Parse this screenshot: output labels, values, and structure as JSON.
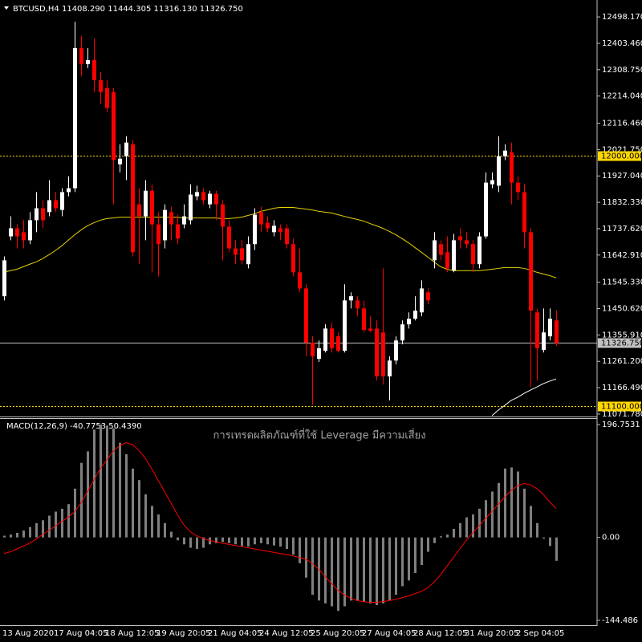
{
  "chart_data": [
    {
      "type": "candlestick",
      "title": "BTCUSD,H4  11408.290 11444.305 11316.130 11326.750",
      "watermark": "การเทรดผลิตภัณฑ์ที่ใช้ Leverage มีความเสี่ยง",
      "up_color": "#ffffff",
      "down_color": "#ff0000",
      "categories": [
        "13 Aug 2020",
        null,
        null,
        null,
        null,
        null,
        null,
        null,
        "17 Aug 04:05",
        null,
        null,
        null,
        null,
        null,
        null,
        null,
        "18 Aug 12:05",
        null,
        null,
        null,
        null,
        null,
        null,
        null,
        "19 Aug 20:05",
        null,
        null,
        null,
        null,
        null,
        null,
        null,
        "21 Aug 04:05",
        null,
        null,
        null,
        null,
        null,
        null,
        null,
        "24 Aug 12:05",
        null,
        null,
        null,
        null,
        null,
        null,
        null,
        "25 Aug 20:05",
        null,
        null,
        null,
        null,
        null,
        null,
        null,
        "27 Aug 04:05",
        null,
        null,
        null,
        null,
        null,
        null,
        null,
        "28 Aug 12:05",
        null,
        null,
        null,
        null,
        null,
        null,
        null,
        "31 Aug 20:05",
        null,
        null,
        null,
        null,
        null,
        null,
        null,
        "2 Sep 04:05",
        null,
        null,
        null,
        null,
        null,
        null
      ],
      "open": [
        11495,
        11710,
        11739,
        11725,
        11696,
        11768,
        11811,
        11797,
        11840,
        11805,
        11869,
        11883,
        12386,
        12329,
        12343,
        12271,
        12243,
        12228,
        11969,
        11998,
        12041,
        11825,
        11782,
        11874,
        11753,
        11696,
        11797,
        11753,
        11753,
        11768,
        11854,
        11869,
        11825,
        11863,
        11825,
        11745,
        11667,
        11667,
        11610,
        11682,
        11797,
        11759,
        11725,
        11739,
        11739,
        11682,
        11581,
        11523,
        11328,
        11270,
        11299,
        11379,
        11351,
        11299,
        11480,
        11480,
        11451,
        11379,
        11379,
        11365,
        11207,
        11264,
        11336,
        11394,
        11414,
        11437,
        11509,
        11624,
        11682,
        11653,
        11587,
        11710,
        11696,
        11682,
        11610,
        11710,
        11897,
        11892,
        11998,
        12012,
        11903,
        11869,
        11725,
        11437,
        11302,
        11351,
        11408.29
      ],
      "high": [
        11638,
        11782,
        11753,
        11768,
        11797,
        11869,
        11840,
        11912,
        11869,
        11883,
        11926,
        12481,
        12430,
        12386,
        12421,
        12300,
        12271,
        12243,
        12041,
        12070,
        12056,
        11883,
        11912,
        11897,
        11797,
        11825,
        11817,
        11788,
        11825,
        11897,
        11892,
        11883,
        11874,
        11874,
        11840,
        11768,
        11696,
        11696,
        11710,
        11811,
        11817,
        11782,
        11768,
        11753,
        11753,
        11702,
        11667,
        11538,
        11351,
        11336,
        11394,
        11400,
        11365,
        11538,
        11509,
        11495,
        11480,
        11423,
        11408,
        11595,
        11279,
        11351,
        11408,
        11437,
        11495,
        11552,
        11523,
        11725,
        11696,
        11710,
        11719,
        11739,
        11725,
        11696,
        11725,
        11940,
        11940,
        12070,
        12041,
        12047,
        11926,
        11897,
        11739,
        11451,
        11451,
        11451,
        11444.305
      ],
      "low": [
        11480,
        11696,
        11667,
        11667,
        11682,
        11725,
        11739,
        11782,
        11797,
        11782,
        11854,
        11869,
        12286,
        12314,
        12228,
        12185,
        12156,
        11825,
        11940,
        11912,
        11638,
        11610,
        11696,
        11581,
        11566,
        11667,
        11696,
        11682,
        11739,
        11753,
        11840,
        11825,
        11811,
        11768,
        11624,
        11653,
        11610,
        11610,
        11595,
        11661,
        11725,
        11725,
        11710,
        11696,
        11667,
        11566,
        11509,
        11279,
        11106,
        11259,
        11293,
        11293,
        11293,
        11293,
        11451,
        11423,
        11365,
        11365,
        11192,
        11178,
        11121,
        11250,
        11322,
        11379,
        11408,
        11423,
        11466,
        11595,
        11624,
        11581,
        11581,
        11667,
        11667,
        11581,
        11595,
        11702,
        11883,
        11869,
        11984,
        11825,
        11840,
        11667,
        11169,
        11192,
        11293,
        11336,
        11316.13
      ],
      "close": [
        11624,
        11739,
        11710,
        11696,
        11768,
        11811,
        11768,
        11840,
        11811,
        11869,
        11883,
        12386,
        12329,
        12343,
        12271,
        12228,
        12171,
        11984,
        11989,
        12047,
        11653,
        11782,
        11874,
        11753,
        11682,
        11805,
        11753,
        11702,
        11782,
        11860,
        11869,
        11840,
        11863,
        11825,
        11745,
        11667,
        11644,
        11624,
        11682,
        11788,
        11753,
        11739,
        11748,
        11725,
        11682,
        11581,
        11523,
        11328,
        11279,
        11308,
        11379,
        11308,
        11299,
        11480,
        11495,
        11451,
        11374,
        11371,
        11207,
        11207,
        11264,
        11336,
        11394,
        11414,
        11443,
        11523,
        11480,
        11696,
        11644,
        11595,
        11696,
        11696,
        11682,
        11610,
        11710,
        11903,
        11912,
        11998,
        12018,
        11903,
        11869,
        11725,
        11443,
        11308,
        11365,
        11414,
        11326.75
      ],
      "series": [
        {
          "color": "#e6d300",
          "values": [
            11581,
            11587,
            11592,
            11601,
            11610,
            11618,
            11630,
            11644,
            11659,
            11676,
            11696,
            11716,
            11733,
            11748,
            11759,
            11768,
            11774,
            11776,
            11779,
            11779,
            11779,
            11779,
            11779,
            11779,
            11779,
            11779,
            11779,
            11779,
            11776,
            11776,
            11776,
            11776,
            11776,
            11776,
            11774,
            11774,
            11776,
            11779,
            11785,
            11791,
            11800,
            11805,
            11811,
            11814,
            11814,
            11814,
            11811,
            11808,
            11805,
            11800,
            11797,
            11794,
            11788,
            11782,
            11776,
            11771,
            11765,
            11756,
            11748,
            11739,
            11728,
            11716,
            11702,
            11687,
            11670,
            11653,
            11636,
            11618,
            11601,
            11592,
            11587,
            11587,
            11587,
            11587,
            11587,
            11589,
            11592,
            11595,
            11598,
            11598,
            11598,
            11595,
            11589,
            11581,
            11575,
            11569,
            11561
          ]
        },
        {
          "color": "#ffffff",
          "values": [
            null,
            null,
            null,
            null,
            null,
            null,
            null,
            null,
            null,
            null,
            null,
            null,
            null,
            null,
            null,
            null,
            null,
            null,
            null,
            null,
            null,
            null,
            null,
            null,
            null,
            null,
            null,
            null,
            null,
            null,
            null,
            null,
            null,
            null,
            null,
            null,
            null,
            null,
            null,
            null,
            null,
            null,
            null,
            null,
            null,
            null,
            null,
            null,
            null,
            null,
            null,
            null,
            null,
            null,
            null,
            null,
            null,
            null,
            null,
            null,
            null,
            null,
            null,
            null,
            null,
            null,
            null,
            null,
            null,
            null,
            null,
            null,
            null,
            null,
            null,
            null,
            11066,
            11086,
            11103,
            11121,
            11132,
            11146,
            11158,
            11169,
            11181,
            11190,
            11198
          ]
        }
      ],
      "hlines": [
        {
          "value": 12000,
          "label": "12000.000",
          "color": "#ffd700",
          "style": "dotted"
        },
        {
          "value": 11100,
          "label": "11100.000",
          "color": "#ffd700",
          "style": "dotted"
        },
        {
          "value": 11326.75,
          "label": "11326.750",
          "color": "#c0c0c0",
          "style": "solid"
        }
      ],
      "ylim": [
        11063,
        12559
      ],
      "yticks": [
        {
          "value": 12498.17,
          "label": "12498.170"
        },
        {
          "value": 12403.46,
          "label": "12403.460"
        },
        {
          "value": 12308.75,
          "label": "12308.750"
        },
        {
          "value": 12214.04,
          "label": "12214.040"
        },
        {
          "value": 12116.46,
          "label": "12116.460"
        },
        {
          "value": 12021.75,
          "label": "12021.750"
        },
        {
          "value": 11927.04,
          "label": "11927.040"
        },
        {
          "value": 11832.33,
          "label": "11832.330"
        },
        {
          "value": 11737.62,
          "label": "11737.620"
        },
        {
          "value": 11642.91,
          "label": "11642.910"
        },
        {
          "value": 11545.33,
          "label": "11545.330"
        },
        {
          "value": 11450.62,
          "label": "11450.620"
        },
        {
          "value": 11355.91,
          "label": "11355.910"
        },
        {
          "value": 11261.2,
          "label": "11261.200"
        },
        {
          "value": 11166.49,
          "label": "11166.490"
        },
        {
          "value": 11071.78,
          "label": "11071.780"
        }
      ]
    },
    {
      "type": "macd",
      "title": "MACD(12,26,9) -40.7753 50.4390",
      "series": [
        {
          "type": "bar",
          "color": "#808080",
          "values": [
            3,
            5,
            8,
            12,
            18,
            25,
            30,
            38,
            45,
            50,
            58,
            85,
            130,
            150,
            188,
            196.7531,
            195,
            190,
            165,
            145,
            120,
            100,
            75,
            55,
            40,
            25,
            10,
            -5,
            -12,
            -18,
            -20,
            -18,
            -12,
            -10,
            -8,
            -10,
            -12,
            -15,
            -16,
            -12,
            -10,
            -12,
            -14,
            -16,
            -20,
            -30,
            -45,
            -70,
            -100,
            -110,
            -115,
            -120,
            -128,
            -120,
            -110,
            -110,
            -112,
            -115,
            -118,
            -115,
            -110,
            -100,
            -85,
            -75,
            -62,
            -48,
            -25,
            -10,
            2,
            5,
            15,
            25,
            35,
            40,
            50,
            65,
            80,
            95,
            120,
            122,
            115,
            85,
            55,
            25,
            -2,
            -15,
            -40.7753
          ]
        },
        {
          "type": "line",
          "color": "#ff0000",
          "values": [
            -28,
            -25,
            -20,
            -15,
            -10,
            -3,
            5,
            12,
            20,
            28,
            35,
            45,
            60,
            80,
            100,
            120,
            135,
            150,
            160,
            165,
            162,
            152,
            138,
            120,
            100,
            80,
            60,
            40,
            22,
            10,
            3,
            -2,
            -5,
            -8,
            -10,
            -12,
            -14,
            -16,
            -18,
            -20,
            -22,
            -24,
            -26,
            -28,
            -30,
            -32,
            -35,
            -38,
            -45,
            -55,
            -68,
            -80,
            -92,
            -100,
            -106,
            -110,
            -112,
            -113,
            -113,
            -112,
            -110,
            -108,
            -105,
            -102,
            -98,
            -94,
            -88,
            -78,
            -65,
            -50,
            -35,
            -20,
            -5,
            8,
            20,
            33,
            45,
            58,
            70,
            82,
            90,
            94,
            92,
            85,
            75,
            62,
            50.439
          ]
        }
      ],
      "ylim": [
        -152.9,
        208.0
      ],
      "yticks": [
        196.7531,
        {
          "value": 0,
          "label": "0.00"
        },
        -144.486
      ]
    }
  ]
}
